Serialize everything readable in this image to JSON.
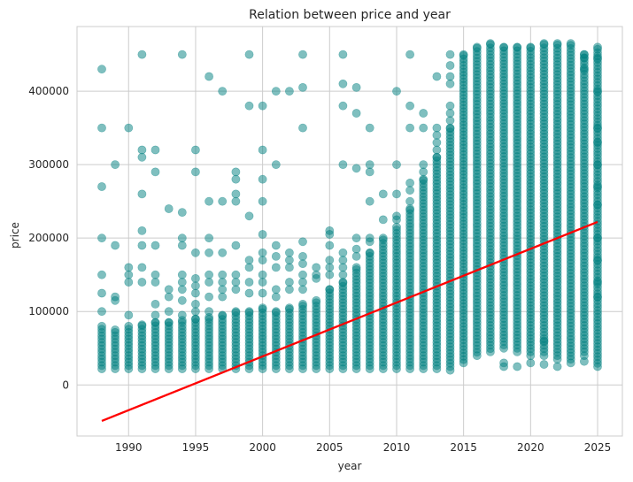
{
  "chart_data": {
    "type": "scatter",
    "title": "Relation between price and year",
    "xlabel": "year",
    "ylabel": "price",
    "xlim": [
      1986.15,
      2026.85
    ],
    "ylim": [
      -69500,
      488000
    ],
    "xticks": [
      1990,
      1995,
      2000,
      2005,
      2010,
      2015,
      2020,
      2025
    ],
    "yticks": [
      0,
      100000,
      200000,
      300000,
      400000
    ],
    "grid": true,
    "colors": {
      "points": "#008080",
      "trend": "#ff0000",
      "grid": "#cccccc",
      "axis": "#cccccc"
    },
    "point_alpha": 0.5,
    "series": [
      {
        "kind": "scatter-columns",
        "columns": [
          {
            "x": 1988,
            "ymin": 22000,
            "ymax": 80000
          },
          {
            "x": 1989,
            "ymin": 22000,
            "ymax": 75000
          },
          {
            "x": 1990,
            "ymin": 22000,
            "ymax": 80000
          },
          {
            "x": 1991,
            "ymin": 22000,
            "ymax": 82000
          },
          {
            "x": 1992,
            "ymin": 22000,
            "ymax": 85000
          },
          {
            "x": 1993,
            "ymin": 22000,
            "ymax": 85000
          },
          {
            "x": 1994,
            "ymin": 22000,
            "ymax": 88000
          },
          {
            "x": 1995,
            "ymin": 22000,
            "ymax": 90000
          },
          {
            "x": 1996,
            "ymin": 22000,
            "ymax": 92000
          },
          {
            "x": 1997,
            "ymin": 22000,
            "ymax": 95000
          },
          {
            "x": 1998,
            "ymin": 22000,
            "ymax": 100000
          },
          {
            "x": 1999,
            "ymin": 22000,
            "ymax": 100000
          },
          {
            "x": 2000,
            "ymin": 22000,
            "ymax": 105000
          },
          {
            "x": 2001,
            "ymin": 22000,
            "ymax": 100000
          },
          {
            "x": 2002,
            "ymin": 22000,
            "ymax": 105000
          },
          {
            "x": 2003,
            "ymin": 22000,
            "ymax": 110000
          },
          {
            "x": 2004,
            "ymin": 22000,
            "ymax": 115000
          },
          {
            "x": 2005,
            "ymin": 22000,
            "ymax": 130000
          },
          {
            "x": 2006,
            "ymin": 22000,
            "ymax": 140000
          },
          {
            "x": 2007,
            "ymin": 22000,
            "ymax": 160000
          },
          {
            "x": 2008,
            "ymin": 22000,
            "ymax": 180000
          },
          {
            "x": 2009,
            "ymin": 22000,
            "ymax": 200000
          },
          {
            "x": 2010,
            "ymin": 22000,
            "ymax": 215000
          },
          {
            "x": 2011,
            "ymin": 22000,
            "ymax": 240000
          },
          {
            "x": 2012,
            "ymin": 22000,
            "ymax": 280000
          },
          {
            "x": 2013,
            "ymin": 22000,
            "ymax": 310000
          },
          {
            "x": 2014,
            "ymin": 25000,
            "ymax": 350000
          },
          {
            "x": 2015,
            "ymin": 30000,
            "ymax": 450000
          },
          {
            "x": 2016,
            "ymin": 40000,
            "ymax": 460000
          },
          {
            "x": 2017,
            "ymin": 45000,
            "ymax": 465000
          },
          {
            "x": 2018,
            "ymin": 50000,
            "ymax": 460000
          },
          {
            "x": 2019,
            "ymin": 50000,
            "ymax": 460000
          },
          {
            "x": 2020,
            "ymin": 45000,
            "ymax": 460000
          },
          {
            "x": 2021,
            "ymin": 45000,
            "ymax": 465000
          },
          {
            "x": 2022,
            "ymin": 40000,
            "ymax": 465000
          },
          {
            "x": 2023,
            "ymin": 35000,
            "ymax": 465000
          },
          {
            "x": 2024,
            "ymin": 45000,
            "ymax": 450000
          },
          {
            "x": 2025,
            "ymin": 25000,
            "ymax": 460000
          }
        ],
        "outliers": [
          [
            1988,
            430000
          ],
          [
            1988,
            350000
          ],
          [
            1988,
            270000
          ],
          [
            1988,
            200000
          ],
          [
            1988,
            150000
          ],
          [
            1988,
            125000
          ],
          [
            1988,
            100000
          ],
          [
            1989,
            300000
          ],
          [
            1989,
            190000
          ],
          [
            1989,
            120000
          ],
          [
            1989,
            115000
          ],
          [
            1990,
            350000
          ],
          [
            1990,
            160000
          ],
          [
            1990,
            150000
          ],
          [
            1990,
            140000
          ],
          [
            1990,
            95000
          ],
          [
            1991,
            450000
          ],
          [
            1991,
            320000
          ],
          [
            1991,
            310000
          ],
          [
            1991,
            260000
          ],
          [
            1991,
            210000
          ],
          [
            1991,
            190000
          ],
          [
            1991,
            160000
          ],
          [
            1991,
            140000
          ],
          [
            1992,
            320000
          ],
          [
            1992,
            290000
          ],
          [
            1992,
            190000
          ],
          [
            1992,
            150000
          ],
          [
            1992,
            140000
          ],
          [
            1992,
            110000
          ],
          [
            1992,
            95000
          ],
          [
            1993,
            240000
          ],
          [
            1993,
            130000
          ],
          [
            1993,
            120000
          ],
          [
            1993,
            100000
          ],
          [
            1994,
            450000
          ],
          [
            1994,
            235000
          ],
          [
            1994,
            200000
          ],
          [
            1994,
            190000
          ],
          [
            1994,
            150000
          ],
          [
            1994,
            140000
          ],
          [
            1994,
            130000
          ],
          [
            1994,
            115000
          ],
          [
            1994,
            95000
          ],
          [
            1995,
            320000
          ],
          [
            1995,
            290000
          ],
          [
            1995,
            180000
          ],
          [
            1995,
            145000
          ],
          [
            1995,
            135000
          ],
          [
            1995,
            125000
          ],
          [
            1995,
            110000
          ],
          [
            1995,
            100000
          ],
          [
            1996,
            420000
          ],
          [
            1996,
            250000
          ],
          [
            1996,
            200000
          ],
          [
            1996,
            180000
          ],
          [
            1996,
            150000
          ],
          [
            1996,
            140000
          ],
          [
            1996,
            120000
          ],
          [
            1996,
            100000
          ],
          [
            1997,
            400000
          ],
          [
            1997,
            250000
          ],
          [
            1997,
            180000
          ],
          [
            1997,
            150000
          ],
          [
            1997,
            140000
          ],
          [
            1997,
            130000
          ],
          [
            1997,
            120000
          ],
          [
            1998,
            290000
          ],
          [
            1998,
            280000
          ],
          [
            1998,
            260000
          ],
          [
            1998,
            250000
          ],
          [
            1998,
            190000
          ],
          [
            1998,
            150000
          ],
          [
            1998,
            140000
          ],
          [
            1998,
            130000
          ],
          [
            1999,
            450000
          ],
          [
            1999,
            380000
          ],
          [
            1999,
            230000
          ],
          [
            1999,
            170000
          ],
          [
            1999,
            160000
          ],
          [
            1999,
            140000
          ],
          [
            1999,
            125000
          ],
          [
            2000,
            380000
          ],
          [
            2000,
            320000
          ],
          [
            2000,
            280000
          ],
          [
            2000,
            250000
          ],
          [
            2000,
            205000
          ],
          [
            2000,
            180000
          ],
          [
            2000,
            170000
          ],
          [
            2000,
            150000
          ],
          [
            2000,
            140000
          ],
          [
            2000,
            125000
          ],
          [
            2001,
            400000
          ],
          [
            2001,
            300000
          ],
          [
            2001,
            190000
          ],
          [
            2001,
            175000
          ],
          [
            2001,
            160000
          ],
          [
            2001,
            130000
          ],
          [
            2001,
            120000
          ],
          [
            2002,
            400000
          ],
          [
            2002,
            180000
          ],
          [
            2002,
            170000
          ],
          [
            2002,
            160000
          ],
          [
            2002,
            140000
          ],
          [
            2002,
            130000
          ],
          [
            2003,
            450000
          ],
          [
            2003,
            405000
          ],
          [
            2003,
            350000
          ],
          [
            2003,
            195000
          ],
          [
            2003,
            175000
          ],
          [
            2003,
            165000
          ],
          [
            2003,
            150000
          ],
          [
            2003,
            140000
          ],
          [
            2003,
            130000
          ],
          [
            2004,
            160000
          ],
          [
            2004,
            150000
          ],
          [
            2004,
            145000
          ],
          [
            2005,
            210000
          ],
          [
            2005,
            205000
          ],
          [
            2005,
            190000
          ],
          [
            2005,
            170000
          ],
          [
            2005,
            160000
          ],
          [
            2005,
            150000
          ],
          [
            2006,
            450000
          ],
          [
            2006,
            410000
          ],
          [
            2006,
            380000
          ],
          [
            2006,
            300000
          ],
          [
            2006,
            180000
          ],
          [
            2006,
            170000
          ],
          [
            2006,
            160000
          ],
          [
            2006,
            150000
          ],
          [
            2007,
            405000
          ],
          [
            2007,
            370000
          ],
          [
            2007,
            295000
          ],
          [
            2007,
            200000
          ],
          [
            2007,
            185000
          ],
          [
            2007,
            175000
          ],
          [
            2008,
            350000
          ],
          [
            2008,
            300000
          ],
          [
            2008,
            290000
          ],
          [
            2008,
            250000
          ],
          [
            2008,
            200000
          ],
          [
            2008,
            195000
          ],
          [
            2009,
            260000
          ],
          [
            2009,
            225000
          ],
          [
            2010,
            400000
          ],
          [
            2010,
            300000
          ],
          [
            2010,
            260000
          ],
          [
            2010,
            230000
          ],
          [
            2010,
            225000
          ],
          [
            2011,
            450000
          ],
          [
            2011,
            380000
          ],
          [
            2011,
            350000
          ],
          [
            2011,
            275000
          ],
          [
            2011,
            265000
          ],
          [
            2011,
            250000
          ],
          [
            2012,
            370000
          ],
          [
            2012,
            350000
          ],
          [
            2012,
            300000
          ],
          [
            2012,
            290000
          ],
          [
            2013,
            420000
          ],
          [
            2013,
            350000
          ],
          [
            2013,
            340000
          ],
          [
            2013,
            330000
          ],
          [
            2013,
            320000
          ],
          [
            2014,
            450000
          ],
          [
            2014,
            435000
          ],
          [
            2014,
            420000
          ],
          [
            2014,
            410000
          ],
          [
            2014,
            380000
          ],
          [
            2014,
            370000
          ],
          [
            2014,
            360000
          ],
          [
            2014,
            20000
          ],
          [
            2018,
            30000
          ],
          [
            2018,
            25000
          ],
          [
            2019,
            45000
          ],
          [
            2019,
            25000
          ],
          [
            2020,
            40000
          ],
          [
            2020,
            30000
          ],
          [
            2021,
            60000
          ],
          [
            2021,
            40000
          ],
          [
            2021,
            28000
          ],
          [
            2022,
            35000
          ],
          [
            2022,
            25000
          ],
          [
            2023,
            30000
          ],
          [
            2024,
            445000
          ],
          [
            2024,
            430000
          ],
          [
            2024,
            40000
          ],
          [
            2024,
            32000
          ],
          [
            2025,
            445000
          ],
          [
            2025,
            400000
          ],
          [
            2025,
            350000
          ],
          [
            2025,
            330000
          ],
          [
            2025,
            300000
          ],
          [
            2025,
            270000
          ],
          [
            2025,
            245000
          ],
          [
            2025,
            200000
          ],
          [
            2025,
            170000
          ],
          [
            2025,
            140000
          ],
          [
            2025,
            120000
          ]
        ]
      },
      {
        "kind": "line",
        "x": [
          1988,
          2025
        ],
        "y": [
          -49000,
          222000
        ]
      }
    ]
  }
}
